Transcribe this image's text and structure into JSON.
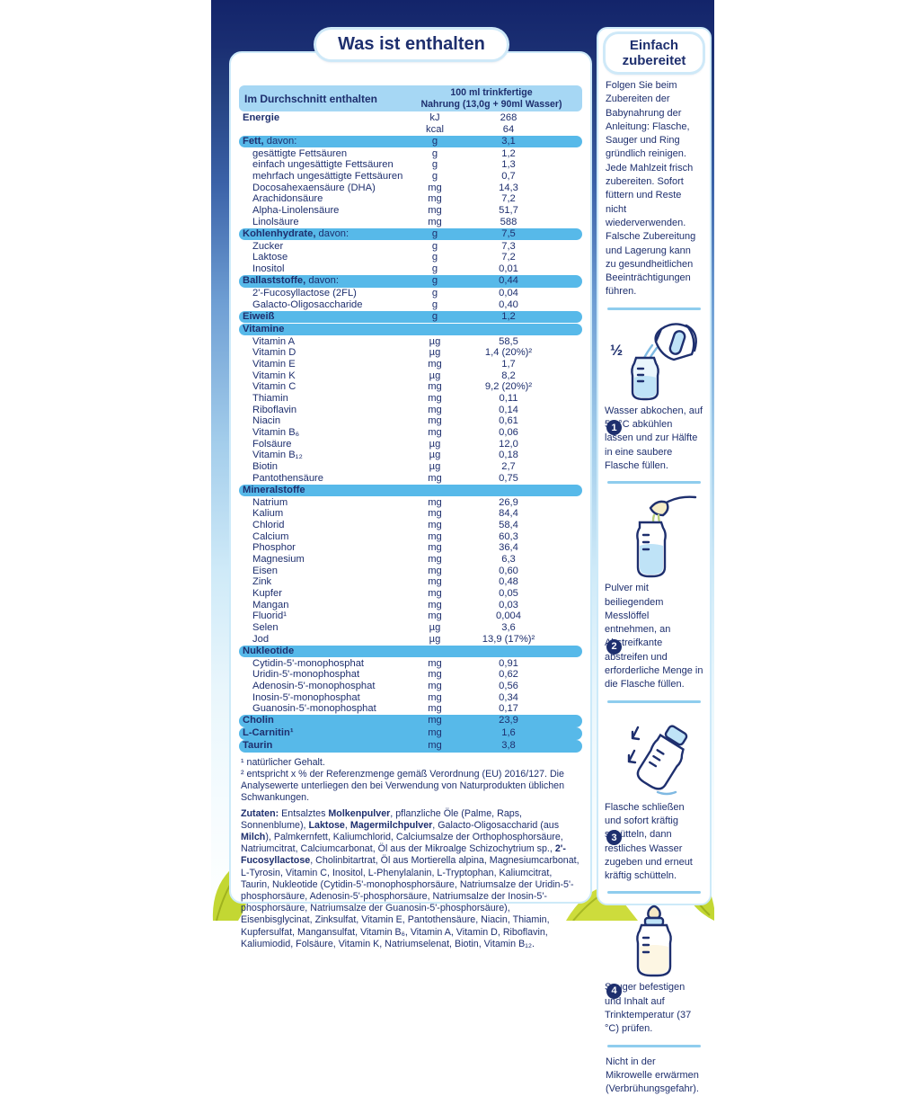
{
  "colors": {
    "navy": "#1e2f6e",
    "highlight": "#57b9e9",
    "header_bg": "#a6d7f4",
    "divider": "#8fcdee",
    "leaf": "#c3d733",
    "panel_border": "#cdeaf9"
  },
  "left_panel": {
    "title": "Was ist enthalten",
    "table": {
      "header": {
        "col1": "Im Durchschnitt enthalten",
        "col2_line1": "100 ml trinkfertige",
        "col2_line2": "Nahrung (13,0g + 90ml Wasser)"
      },
      "rows": [
        {
          "t": "r",
          "b": "Energie",
          "u": "kJ",
          "v": "268"
        },
        {
          "t": "r",
          "l": "",
          "u": "kcal",
          "v": "64"
        },
        {
          "t": "h",
          "b": "Fett,",
          "r": " davon:",
          "u": "g",
          "v": "3,1"
        },
        {
          "t": "s",
          "l": "gesättigte Fettsäuren",
          "u": "g",
          "v": "1,2"
        },
        {
          "t": "s",
          "l": "einfach ungesättigte Fettsäuren",
          "u": "g",
          "v": "1,3"
        },
        {
          "t": "s",
          "l": "mehrfach ungesättigte Fettsäuren",
          "u": "g",
          "v": "0,7"
        },
        {
          "t": "s",
          "l": "Docosahexaensäure (DHA)",
          "u": "mg",
          "v": "14,3"
        },
        {
          "t": "s",
          "l": "Arachidonsäure",
          "u": "mg",
          "v": "7,2"
        },
        {
          "t": "s",
          "l": "Alpha-Linolensäure",
          "u": "mg",
          "v": "51,7"
        },
        {
          "t": "s",
          "l": "Linolsäure",
          "u": "mg",
          "v": "588"
        },
        {
          "t": "h",
          "b": "Kohlenhydrate,",
          "r": " davon:",
          "u": "g",
          "v": "7,5"
        },
        {
          "t": "s",
          "l": "Zucker",
          "u": "g",
          "v": "7,3"
        },
        {
          "t": "s",
          "l": "Laktose",
          "u": "g",
          "v": "7,2"
        },
        {
          "t": "s",
          "l": "Inositol",
          "u": "g",
          "v": "0,01"
        },
        {
          "t": "h",
          "b": "Ballaststoffe,",
          "r": " davon:",
          "u": "g",
          "v": "0,44"
        },
        {
          "t": "s",
          "l": "2'-Fucosyllactose (2FL)",
          "u": "g",
          "v": "0,04"
        },
        {
          "t": "s",
          "l": "Galacto-Oligosaccharide",
          "u": "g",
          "v": "0,40"
        },
        {
          "t": "h",
          "b": "Eiweiß",
          "u": "g",
          "v": "1,2"
        },
        {
          "t": "H",
          "b": "Vitamine"
        },
        {
          "t": "s",
          "l": "Vitamin A",
          "u": "µg",
          "v": "58,5"
        },
        {
          "t": "s",
          "l": "Vitamin D",
          "u": "µg",
          "v": "1,4 (20%)²"
        },
        {
          "t": "s",
          "l": "Vitamin E",
          "u": "mg",
          "v": "1,7"
        },
        {
          "t": "s",
          "l": "Vitamin K",
          "u": "µg",
          "v": "8,2"
        },
        {
          "t": "s",
          "l": "Vitamin C",
          "u": "mg",
          "v": "9,2 (20%)²"
        },
        {
          "t": "s",
          "l": "Thiamin",
          "u": "mg",
          "v": "0,11"
        },
        {
          "t": "s",
          "l": "Riboflavin",
          "u": "mg",
          "v": "0,14"
        },
        {
          "t": "s",
          "l": "Niacin",
          "u": "mg",
          "v": "0,61"
        },
        {
          "t": "s",
          "l": "Vitamin B₆",
          "u": "mg",
          "v": "0,06"
        },
        {
          "t": "s",
          "l": "Folsäure",
          "u": "µg",
          "v": "12,0"
        },
        {
          "t": "s",
          "l": "Vitamin B₁₂",
          "u": "µg",
          "v": "0,18"
        },
        {
          "t": "s",
          "l": "Biotin",
          "u": "µg",
          "v": "2,7"
        },
        {
          "t": "s",
          "l": "Pantothensäure",
          "u": "mg",
          "v": "0,75"
        },
        {
          "t": "H",
          "b": "Mineralstoffe"
        },
        {
          "t": "s",
          "l": "Natrium",
          "u": "mg",
          "v": "26,9"
        },
        {
          "t": "s",
          "l": "Kalium",
          "u": "mg",
          "v": "84,4"
        },
        {
          "t": "s",
          "l": "Chlorid",
          "u": "mg",
          "v": "58,4"
        },
        {
          "t": "s",
          "l": "Calcium",
          "u": "mg",
          "v": "60,3"
        },
        {
          "t": "s",
          "l": "Phosphor",
          "u": "mg",
          "v": "36,4"
        },
        {
          "t": "s",
          "l": "Magnesium",
          "u": "mg",
          "v": "6,3"
        },
        {
          "t": "s",
          "l": "Eisen",
          "u": "mg",
          "v": "0,60"
        },
        {
          "t": "s",
          "l": "Zink",
          "u": "mg",
          "v": "0,48"
        },
        {
          "t": "s",
          "l": "Kupfer",
          "u": "mg",
          "v": "0,05"
        },
        {
          "t": "s",
          "l": "Mangan",
          "u": "mg",
          "v": "0,03"
        },
        {
          "t": "s",
          "l": "Fluorid¹",
          "u": "mg",
          "v": "0,004"
        },
        {
          "t": "s",
          "l": "Selen",
          "u": "µg",
          "v": "3,6"
        },
        {
          "t": "s",
          "l": "Jod",
          "u": "µg",
          "v": "13,9 (17%)²"
        },
        {
          "t": "H",
          "b": "Nukleotide"
        },
        {
          "t": "s",
          "l": "Cytidin-5'-monophosphat",
          "u": "mg",
          "v": "0,91"
        },
        {
          "t": "s",
          "l": "Uridin-5'-monophosphat",
          "u": "mg",
          "v": "0,62"
        },
        {
          "t": "s",
          "l": "Adenosin-5'-monophosphat",
          "u": "mg",
          "v": "0,56"
        },
        {
          "t": "s",
          "l": "Inosin-5'-monophosphat",
          "u": "mg",
          "v": "0,34"
        },
        {
          "t": "s",
          "l": "Guanosin-5'-monophosphat",
          "u": "mg",
          "v": "0,17"
        },
        {
          "t": "h",
          "b": "Cholin",
          "u": "mg",
          "v": "23,9"
        },
        {
          "t": "h",
          "b": "L-Carnitin¹",
          "u": "mg",
          "v": "1,6"
        },
        {
          "t": "h",
          "b": "Taurin",
          "u": "mg",
          "v": "3,8"
        }
      ]
    },
    "footnote1": "¹ natürlicher Gehalt.",
    "footnote2": "² entspricht x % der Referenzmenge gemäß Verordnung (EU) 2016/127. Die Analysewerte unterliegen den bei Verwendung von Naturprodukten üblichen Schwankungen.",
    "ingredients": [
      {
        "t": "Zutaten: ",
        "b": true
      },
      {
        "t": "Entsalztes "
      },
      {
        "t": "Molkenpulver",
        "b": true
      },
      {
        "t": ", pflanzliche Öle (Palme, Raps, Sonnenblume), "
      },
      {
        "t": "Laktose",
        "b": true
      },
      {
        "t": ", "
      },
      {
        "t": "Magermilchpulver",
        "b": true
      },
      {
        "t": ", Galacto-Oligosaccharid (aus "
      },
      {
        "t": "Milch",
        "b": true
      },
      {
        "t": "), Palmkernfett, Kaliumchlorid, Calciumsalze der Orthophosphorsäure, Natriumcitrat, Calciumcarbonat, Öl aus der Mikroalge Schizochytrium sp., "
      },
      {
        "t": "2'-Fucosyllactose",
        "b": true
      },
      {
        "t": ", Cholinbitartrat, Öl aus Mortierella alpina, Magnesiumcarbonat, L-Tyrosin, Vitamin C, Inositol, L-Phenylalanin, L-Tryptophan, Kaliumcitrat, Taurin, Nukleotide (Cytidin-5'-monophosphorsäure, Natriumsalze der Uridin-5'-phosphorsäure, Adenosin-5'-phosphorsäure, Natriumsalze der Inosin-5'-phosphorsäure, Natriumsalze der Guanosin-5'-phosphorsäure), Eisenbisglycinat, Zinksulfat, Vitamin E, Pantothensäure, Niacin, Thiamin, Kupfersulfat, Mangansulfat, Vitamin B₆, Vitamin A, Vitamin D, Riboflavin, Kaliumiodid, Folsäure, Vitamin K, Natriumselenat, Biotin, Vitamin B₁₂."
      }
    ]
  },
  "sidebar": {
    "title_line1": "Einfach",
    "title_line2": "zubereitet",
    "intro": "Folgen Sie beim Zubereiten der Babynahrung der Anleitung: Flasche, Sauger und Ring gründlich reinigen. Jede Mahlzeit frisch zubereiten. Sofort füttern und Reste nicht wiederverwenden. Falsche Zubereitung und Lagerung kann zu gesundheitlichen Beeinträchtigungen führen.",
    "steps": [
      {
        "num": "1",
        "icon": "kettle-pour-icon",
        "extra": "½",
        "text": "Wasser abkochen, auf 50 °C abkühlen lassen und zur Hälfte in eine saubere Flasche füllen."
      },
      {
        "num": "2",
        "icon": "scoop-bottle-icon",
        "text": "Pulver mit beiliegendem Messlöffel entnehmen, an Abstreifkante abstreifen und erforderliche Menge in die Flasche füllen."
      },
      {
        "num": "3",
        "icon": "shake-bottle-icon",
        "text": "Flasche schließen und sofort kräftig schütteln, dann restliches Wasser zugeben und erneut kräftig schütteln."
      },
      {
        "num": "4",
        "icon": "feeding-bottle-icon",
        "text": "Sauger befestigen und Inhalt auf Trinktemperatur (37 °C) prüfen."
      }
    ],
    "note": "Nicht in der Mikrowelle erwärmen (Verbrühungsgefahr)."
  }
}
